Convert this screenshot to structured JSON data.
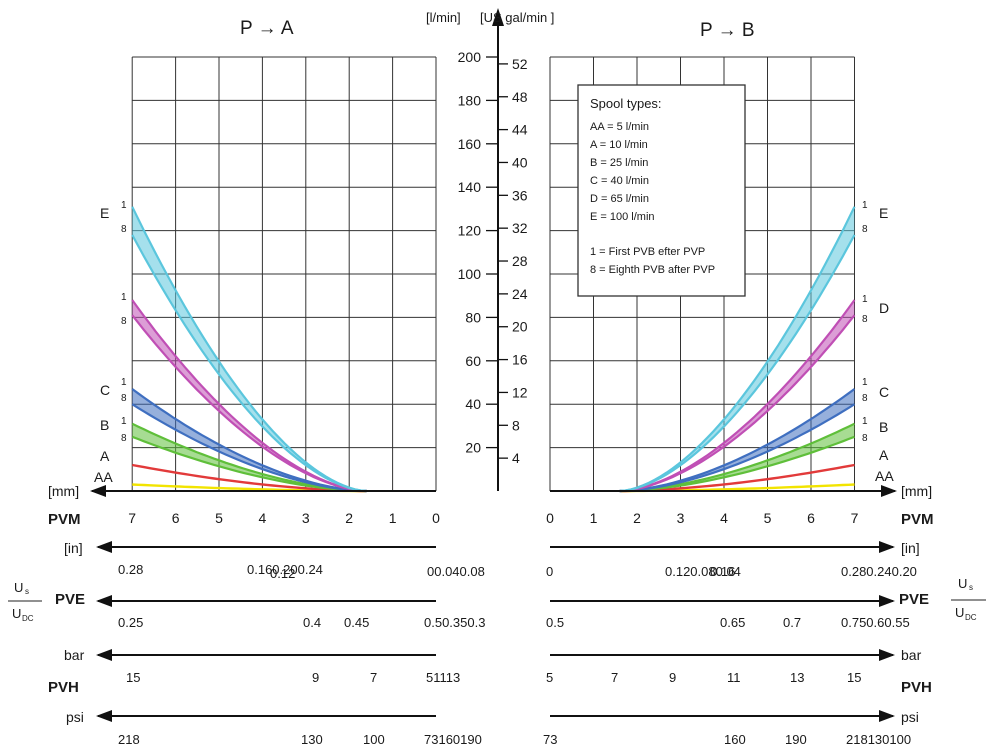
{
  "chart_data": {
    "type": "line",
    "panels": [
      {
        "id": "pa",
        "title": "P → A"
      },
      {
        "id": "pb",
        "title": "P → B"
      }
    ],
    "y_axis": {
      "label_lmin": "[l/min]",
      "label_usgal": "[US gal/min ]",
      "ticks_lmin": [
        "200",
        "180",
        "160",
        "140",
        "120",
        "100",
        "80",
        "60",
        "40",
        "20"
      ],
      "ticks_usgal": [
        "52",
        "48",
        "44",
        "40",
        "36",
        "32",
        "28",
        "24",
        "20",
        "16",
        "12",
        "8",
        "4"
      ],
      "ylim": [
        0,
        200
      ]
    },
    "x_axis": {
      "unit": "[mm]",
      "xlim": [
        0,
        7
      ]
    },
    "series": [
      {
        "name": "AA",
        "left_tag": "AA",
        "right_tag": "AA",
        "color": "#f2e400",
        "end_value": 3
      },
      {
        "name": "A",
        "left_tag": "A",
        "right_tag": "A",
        "color": "#e23a3a",
        "end_value": 12
      },
      {
        "name": "B",
        "left_tag": "B",
        "right_tag": "B",
        "color": "#5fbf3a",
        "end_value": [
          25,
          31
        ]
      },
      {
        "name": "C",
        "left_tag": "C",
        "right_tag": "C",
        "color": "#3f6fc0",
        "end_value": [
          40,
          47
        ]
      },
      {
        "name": "D",
        "left_tag": "",
        "right_tag": "D",
        "color": "#c04fb5",
        "end_value": [
          81,
          88
        ]
      },
      {
        "name": "E",
        "left_tag": "E",
        "right_tag": "E",
        "color": "#5bc6dd",
        "end_value": [
          118,
          131
        ]
      }
    ],
    "band_labels": {
      "first": "1",
      "eighth": "8"
    },
    "legend": {
      "title": "Spool types:",
      "items": [
        "AA = 5 l/min",
        "A = 10 l/min",
        "B = 25 l/min",
        "C = 40 l/min",
        "D = 65 l/min",
        "E = 100 l/min"
      ],
      "notes": [
        "1 = First PVB efter PVP",
        "8 = Eighth PVB after PVP"
      ]
    }
  },
  "scales": {
    "pvm": {
      "name": "PVM",
      "unit": "[mm]",
      "left_ticks": [
        "7",
        "6",
        "5",
        "4",
        "3",
        "2",
        "1",
        "0"
      ],
      "right_ticks": [
        "0",
        "1",
        "2",
        "3",
        "4",
        "5",
        "6",
        "7"
      ]
    },
    "inch": {
      "unit": "[in]",
      "left_labels": [
        "0.28",
        "0.160.200.24",
        "0.12",
        "00.040.08"
      ],
      "right_labels": [
        "0",
        "0.120.080.04",
        "0.16",
        "0.280.240.20"
      ]
    },
    "pve": {
      "name": "PVE",
      "ratio_top": "U",
      "ratio_top_sub": "s",
      "ratio_bottom": "U",
      "ratio_bottom_sub": "DC",
      "left_labels": [
        "0.25",
        "0.4",
        "0.45",
        "0.50.350.3"
      ],
      "right_labels": [
        "0.5",
        "0.65",
        "0.7",
        "0.750.60.55"
      ]
    },
    "pvh": {
      "name": "PVH",
      "unit": "bar",
      "left_labels": [
        "15",
        "9",
        "7",
        "51113"
      ],
      "right_labels": [
        "5",
        "7",
        "9",
        "11",
        "13",
        "15"
      ]
    },
    "psi": {
      "unit": "psi",
      "left_labels": [
        "218",
        "130",
        "100",
        "73160190"
      ],
      "right_labels": [
        "73",
        "160",
        "190",
        "218130100"
      ]
    }
  }
}
